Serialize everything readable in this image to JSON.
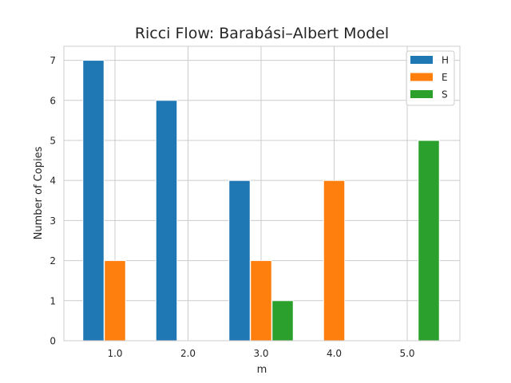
{
  "chart_data": {
    "type": "bar",
    "title": "Ricci Flow: Barabási–Albert Model",
    "xlabel": "m",
    "ylabel": "Number of Copies",
    "categories": [
      "1.0",
      "2.0",
      "3.0",
      "4.0",
      "5.0"
    ],
    "series": [
      {
        "name": "H",
        "color": "#1f77b4",
        "values": [
          7,
          6,
          4,
          0,
          0
        ]
      },
      {
        "name": "E",
        "color": "#ff7f0e",
        "values": [
          2,
          0,
          2,
          4,
          0
        ]
      },
      {
        "name": "S",
        "color": "#2ca02c",
        "values": [
          0,
          0,
          1,
          0,
          5
        ]
      }
    ],
    "ylim": [
      0,
      7.35
    ],
    "yticks": [
      "0",
      "1",
      "2",
      "3",
      "4",
      "5",
      "6",
      "7"
    ],
    "grid": true,
    "legend_position": "top-right"
  }
}
